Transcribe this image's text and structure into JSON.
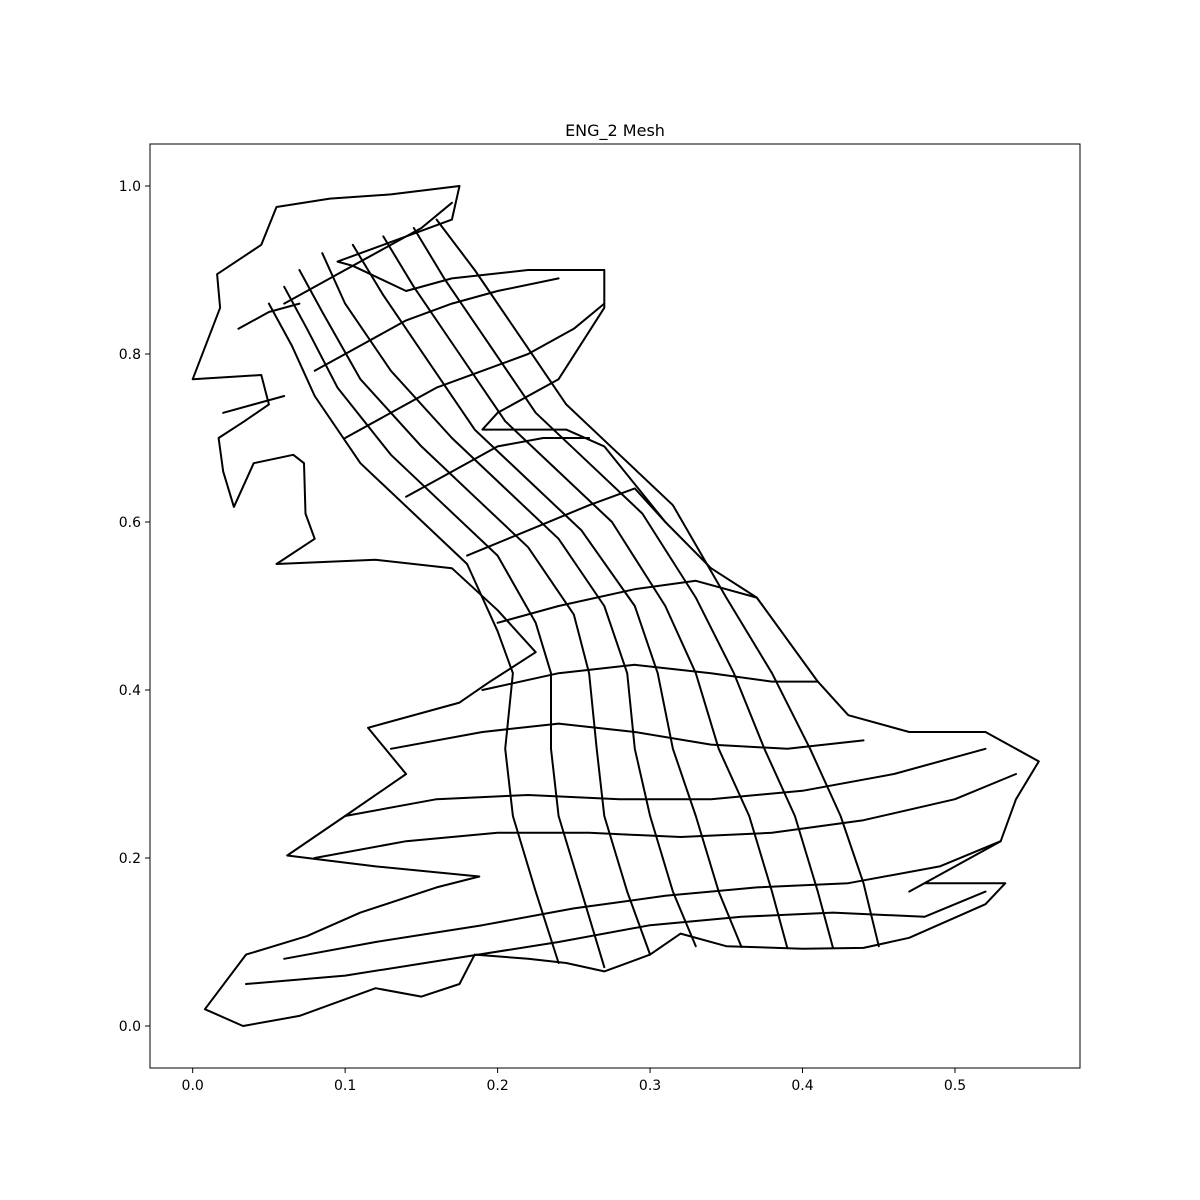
{
  "chart_data": {
    "type": "line",
    "title": "ENG_2 Mesh",
    "xlabel": "",
    "ylabel": "",
    "xlim": [
      -0.028,
      0.582
    ],
    "ylim": [
      -0.05,
      1.05
    ],
    "x_ticks": [
      0.0,
      0.1,
      0.2,
      0.3,
      0.4,
      0.5
    ],
    "x_tick_labels": [
      "0.0",
      "0.1",
      "0.2",
      "0.3",
      "0.4",
      "0.5"
    ],
    "y_ticks": [
      0.0,
      0.2,
      0.4,
      0.6,
      0.8,
      1.0
    ],
    "y_tick_labels": [
      "0.0",
      "0.2",
      "0.4",
      "0.6",
      "0.8",
      "1.0"
    ],
    "grid": false,
    "line_color": "#000000",
    "outline": [
      [
        0.175,
        1.0
      ],
      [
        0.13,
        0.99
      ],
      [
        0.09,
        0.985
      ],
      [
        0.055,
        0.975
      ],
      [
        0.045,
        0.93
      ],
      [
        0.016,
        0.895
      ],
      [
        0.018,
        0.855
      ],
      [
        0.0,
        0.77
      ],
      [
        0.045,
        0.775
      ],
      [
        0.05,
        0.74
      ],
      [
        0.034,
        0.72
      ],
      [
        0.017,
        0.7
      ],
      [
        0.02,
        0.66
      ],
      [
        0.027,
        0.618
      ],
      [
        0.04,
        0.67
      ],
      [
        0.066,
        0.68
      ],
      [
        0.073,
        0.67
      ],
      [
        0.074,
        0.61
      ],
      [
        0.08,
        0.58
      ],
      [
        0.055,
        0.55
      ],
      [
        0.12,
        0.555
      ],
      [
        0.17,
        0.545
      ],
      [
        0.2,
        0.495
      ],
      [
        0.225,
        0.445
      ],
      [
        0.195,
        0.41
      ],
      [
        0.175,
        0.385
      ],
      [
        0.115,
        0.355
      ],
      [
        0.14,
        0.3
      ],
      [
        0.1,
        0.25
      ],
      [
        0.062,
        0.203
      ],
      [
        0.12,
        0.19
      ],
      [
        0.188,
        0.178
      ],
      [
        0.16,
        0.165
      ],
      [
        0.11,
        0.135
      ],
      [
        0.075,
        0.107
      ],
      [
        0.035,
        0.085
      ],
      [
        0.008,
        0.02
      ],
      [
        0.033,
        0.0
      ],
      [
        0.07,
        0.012
      ],
      [
        0.12,
        0.045
      ],
      [
        0.15,
        0.035
      ],
      [
        0.175,
        0.05
      ],
      [
        0.185,
        0.085
      ],
      [
        0.22,
        0.08
      ],
      [
        0.245,
        0.075
      ],
      [
        0.27,
        0.065
      ],
      [
        0.3,
        0.085
      ],
      [
        0.32,
        0.11
      ],
      [
        0.35,
        0.095
      ],
      [
        0.4,
        0.092
      ],
      [
        0.44,
        0.093
      ],
      [
        0.47,
        0.105
      ],
      [
        0.52,
        0.145
      ],
      [
        0.533,
        0.17
      ],
      [
        0.48,
        0.17
      ],
      [
        0.47,
        0.16
      ],
      [
        0.53,
        0.22
      ],
      [
        0.54,
        0.27
      ],
      [
        0.555,
        0.315
      ],
      [
        0.52,
        0.35
      ],
      [
        0.47,
        0.35
      ],
      [
        0.43,
        0.37
      ],
      [
        0.41,
        0.41
      ],
      [
        0.39,
        0.46
      ],
      [
        0.37,
        0.51
      ],
      [
        0.34,
        0.545
      ],
      [
        0.31,
        0.6
      ],
      [
        0.27,
        0.69
      ],
      [
        0.245,
        0.71
      ],
      [
        0.19,
        0.71
      ],
      [
        0.2,
        0.73
      ],
      [
        0.24,
        0.77
      ],
      [
        0.27,
        0.855
      ],
      [
        0.27,
        0.9
      ],
      [
        0.22,
        0.9
      ],
      [
        0.17,
        0.89
      ],
      [
        0.14,
        0.875
      ],
      [
        0.105,
        0.905
      ],
      [
        0.095,
        0.91
      ],
      [
        0.17,
        0.96
      ]
    ],
    "vertical_curves": [
      [
        [
          0.33,
          0.095
        ],
        [
          0.315,
          0.16
        ],
        [
          0.3,
          0.25
        ],
        [
          0.29,
          0.33
        ],
        [
          0.285,
          0.42
        ],
        [
          0.27,
          0.5
        ],
        [
          0.24,
          0.58
        ],
        [
          0.205,
          0.64
        ],
        [
          0.17,
          0.7
        ],
        [
          0.13,
          0.78
        ],
        [
          0.1,
          0.86
        ],
        [
          0.085,
          0.92
        ]
      ],
      [
        [
          0.36,
          0.094
        ],
        [
          0.345,
          0.16
        ],
        [
          0.33,
          0.25
        ],
        [
          0.315,
          0.33
        ],
        [
          0.305,
          0.42
        ],
        [
          0.29,
          0.5
        ],
        [
          0.255,
          0.59
        ],
        [
          0.22,
          0.65
        ],
        [
          0.185,
          0.71
        ],
        [
          0.155,
          0.79
        ],
        [
          0.125,
          0.87
        ],
        [
          0.105,
          0.93
        ]
      ],
      [
        [
          0.39,
          0.093
        ],
        [
          0.38,
          0.16
        ],
        [
          0.365,
          0.25
        ],
        [
          0.345,
          0.33
        ],
        [
          0.33,
          0.42
        ],
        [
          0.31,
          0.5
        ],
        [
          0.275,
          0.6
        ],
        [
          0.24,
          0.66
        ],
        [
          0.205,
          0.72
        ],
        [
          0.175,
          0.8
        ],
        [
          0.145,
          0.88
        ],
        [
          0.125,
          0.94
        ]
      ],
      [
        [
          0.42,
          0.093
        ],
        [
          0.41,
          0.16
        ],
        [
          0.395,
          0.25
        ],
        [
          0.375,
          0.33
        ],
        [
          0.355,
          0.42
        ],
        [
          0.33,
          0.51
        ],
        [
          0.295,
          0.61
        ],
        [
          0.26,
          0.67
        ],
        [
          0.225,
          0.73
        ],
        [
          0.195,
          0.81
        ],
        [
          0.165,
          0.89
        ],
        [
          0.145,
          0.95
        ]
      ],
      [
        [
          0.45,
          0.095
        ],
        [
          0.44,
          0.17
        ],
        [
          0.425,
          0.25
        ],
        [
          0.405,
          0.33
        ],
        [
          0.38,
          0.42
        ],
        [
          0.35,
          0.51
        ],
        [
          0.315,
          0.62
        ],
        [
          0.28,
          0.68
        ],
        [
          0.245,
          0.74
        ],
        [
          0.215,
          0.82
        ],
        [
          0.185,
          0.9
        ],
        [
          0.16,
          0.96
        ]
      ],
      [
        [
          0.3,
          0.085
        ],
        [
          0.285,
          0.16
        ],
        [
          0.27,
          0.25
        ],
        [
          0.265,
          0.33
        ],
        [
          0.26,
          0.42
        ],
        [
          0.25,
          0.49
        ],
        [
          0.22,
          0.57
        ],
        [
          0.185,
          0.63
        ],
        [
          0.15,
          0.69
        ],
        [
          0.11,
          0.77
        ],
        [
          0.085,
          0.85
        ],
        [
          0.07,
          0.9
        ]
      ],
      [
        [
          0.27,
          0.07
        ],
        [
          0.255,
          0.16
        ],
        [
          0.24,
          0.25
        ],
        [
          0.235,
          0.33
        ],
        [
          0.235,
          0.42
        ],
        [
          0.225,
          0.48
        ],
        [
          0.2,
          0.56
        ],
        [
          0.165,
          0.62
        ],
        [
          0.13,
          0.68
        ],
        [
          0.095,
          0.76
        ],
        [
          0.075,
          0.83
        ],
        [
          0.06,
          0.88
        ]
      ],
      [
        [
          0.24,
          0.075
        ],
        [
          0.225,
          0.16
        ],
        [
          0.21,
          0.25
        ],
        [
          0.205,
          0.33
        ],
        [
          0.21,
          0.42
        ],
        [
          0.2,
          0.47
        ],
        [
          0.18,
          0.55
        ],
        [
          0.145,
          0.61
        ],
        [
          0.11,
          0.67
        ],
        [
          0.08,
          0.75
        ],
        [
          0.065,
          0.81
        ],
        [
          0.05,
          0.86
        ]
      ]
    ],
    "horizontal_curves": [
      [
        [
          0.035,
          0.05
        ],
        [
          0.1,
          0.06
        ],
        [
          0.17,
          0.08
        ],
        [
          0.24,
          0.1
        ],
        [
          0.3,
          0.12
        ],
        [
          0.36,
          0.13
        ],
        [
          0.42,
          0.135
        ],
        [
          0.48,
          0.13
        ],
        [
          0.52,
          0.16
        ]
      ],
      [
        [
          0.06,
          0.08
        ],
        [
          0.12,
          0.1
        ],
        [
          0.19,
          0.12
        ],
        [
          0.25,
          0.14
        ],
        [
          0.31,
          0.155
        ],
        [
          0.37,
          0.165
        ],
        [
          0.43,
          0.17
        ],
        [
          0.49,
          0.19
        ],
        [
          0.53,
          0.22
        ]
      ],
      [
        [
          0.08,
          0.2
        ],
        [
          0.14,
          0.22
        ],
        [
          0.2,
          0.23
        ],
        [
          0.26,
          0.23
        ],
        [
          0.32,
          0.225
        ],
        [
          0.38,
          0.23
        ],
        [
          0.44,
          0.245
        ],
        [
          0.5,
          0.27
        ],
        [
          0.54,
          0.3
        ]
      ],
      [
        [
          0.1,
          0.25
        ],
        [
          0.16,
          0.27
        ],
        [
          0.22,
          0.275
        ],
        [
          0.28,
          0.27
        ],
        [
          0.34,
          0.27
        ],
        [
          0.4,
          0.28
        ],
        [
          0.46,
          0.3
        ],
        [
          0.52,
          0.33
        ]
      ],
      [
        [
          0.13,
          0.33
        ],
        [
          0.19,
          0.35
        ],
        [
          0.24,
          0.36
        ],
        [
          0.29,
          0.35
        ],
        [
          0.34,
          0.335
        ],
        [
          0.39,
          0.33
        ],
        [
          0.44,
          0.34
        ]
      ],
      [
        [
          0.19,
          0.4
        ],
        [
          0.24,
          0.42
        ],
        [
          0.29,
          0.43
        ],
        [
          0.34,
          0.42
        ],
        [
          0.38,
          0.41
        ],
        [
          0.41,
          0.41
        ]
      ],
      [
        [
          0.2,
          0.48
        ],
        [
          0.24,
          0.5
        ],
        [
          0.29,
          0.52
        ],
        [
          0.33,
          0.53
        ],
        [
          0.37,
          0.51
        ]
      ],
      [
        [
          0.18,
          0.56
        ],
        [
          0.22,
          0.59
        ],
        [
          0.26,
          0.62
        ],
        [
          0.29,
          0.64
        ],
        [
          0.31,
          0.6
        ]
      ],
      [
        [
          0.14,
          0.63
        ],
        [
          0.17,
          0.66
        ],
        [
          0.2,
          0.69
        ],
        [
          0.23,
          0.7
        ],
        [
          0.26,
          0.7
        ]
      ],
      [
        [
          0.1,
          0.7
        ],
        [
          0.13,
          0.73
        ],
        [
          0.16,
          0.76
        ],
        [
          0.19,
          0.78
        ],
        [
          0.22,
          0.8
        ],
        [
          0.25,
          0.83
        ],
        [
          0.27,
          0.86
        ]
      ],
      [
        [
          0.08,
          0.78
        ],
        [
          0.11,
          0.81
        ],
        [
          0.14,
          0.84
        ],
        [
          0.17,
          0.86
        ],
        [
          0.2,
          0.875
        ],
        [
          0.24,
          0.89
        ]
      ],
      [
        [
          0.06,
          0.86
        ],
        [
          0.09,
          0.89
        ],
        [
          0.12,
          0.92
        ],
        [
          0.15,
          0.95
        ],
        [
          0.17,
          0.98
        ]
      ],
      [
        [
          0.02,
          0.73
        ],
        [
          0.04,
          0.74
        ],
        [
          0.06,
          0.75
        ]
      ],
      [
        [
          0.03,
          0.83
        ],
        [
          0.05,
          0.85
        ],
        [
          0.07,
          0.86
        ]
      ]
    ]
  }
}
